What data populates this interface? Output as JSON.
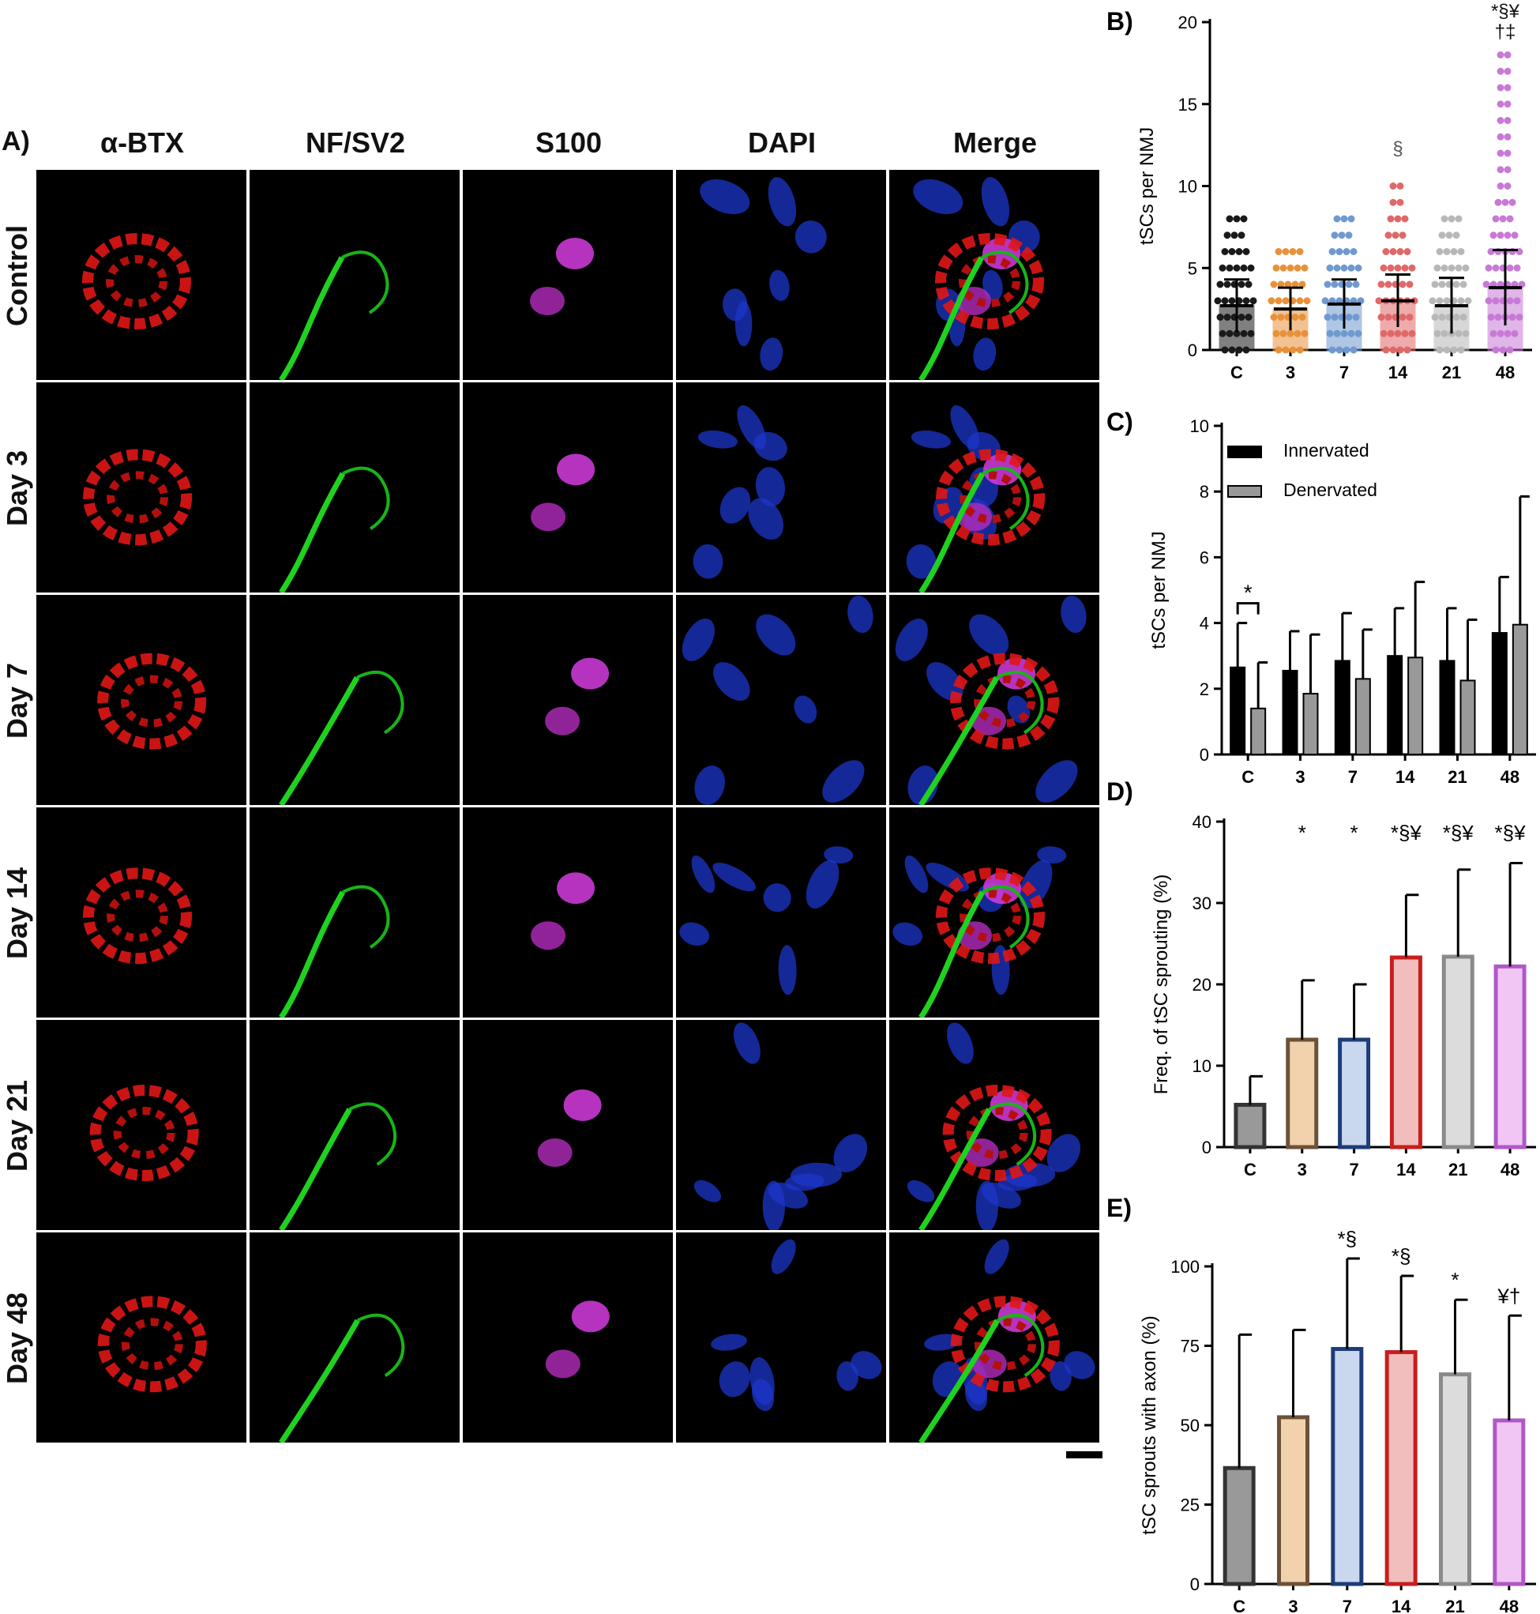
{
  "figure": {
    "panel_a_label": "A)",
    "columns": [
      "α-BTX",
      "NF/SV2",
      "S100",
      "DAPI",
      "Merge"
    ],
    "rows": [
      "Control",
      "Day 3",
      "Day 7",
      "Day 14",
      "Day 21",
      "Day 48"
    ]
  },
  "chart_data": [
    {
      "id": "B",
      "panel_label": "B)",
      "type": "bar",
      "categories": [
        "C",
        "3",
        "7",
        "14",
        "21",
        "48"
      ],
      "values": [
        2.7,
        2.5,
        2.8,
        3.0,
        2.7,
        3.8
      ],
      "errors": [
        1.6,
        1.3,
        1.5,
        1.6,
        1.7,
        2.3
      ],
      "scatter_max": [
        8,
        6,
        8,
        10,
        8,
        18
      ],
      "colors": [
        "#1a1a1a",
        "#e8913a",
        "#6f99cf",
        "#e06868",
        "#b8b8b8",
        "#c879d6"
      ],
      "annotations": [
        "",
        "",
        "",
        "§",
        "",
        "*§¥\n†‡"
      ],
      "ylabel": "tSCs per NMJ",
      "ylim": [
        0,
        20
      ],
      "yticks": [
        0,
        5,
        10,
        15,
        20
      ]
    },
    {
      "id": "C",
      "panel_label": "C)",
      "type": "bar",
      "categories": [
        "C",
        "3",
        "7",
        "14",
        "21",
        "48"
      ],
      "series": [
        {
          "name": "Innervated",
          "values": [
            2.65,
            2.55,
            2.85,
            3.0,
            2.85,
            3.7
          ],
          "errors": [
            1.35,
            1.2,
            1.45,
            1.45,
            1.6,
            1.7
          ],
          "color": "#000000"
        },
        {
          "name": "Denervated",
          "values": [
            1.4,
            1.85,
            2.3,
            2.95,
            2.25,
            3.95
          ],
          "errors": [
            1.4,
            1.8,
            1.5,
            2.3,
            1.85,
            3.9
          ],
          "color": "#999999"
        }
      ],
      "annotation": "*",
      "ylabel": "tSCs per NMJ",
      "ylim": [
        0,
        10
      ],
      "yticks": [
        0,
        2,
        4,
        6,
        8,
        10
      ],
      "legend_position": "top-left"
    },
    {
      "id": "D",
      "panel_label": "D)",
      "type": "bar",
      "categories": [
        "C",
        "3",
        "7",
        "14",
        "21",
        "48"
      ],
      "values": [
        5.2,
        13.2,
        13.2,
        23.3,
        23.4,
        22.2
      ],
      "errors": [
        3.5,
        7.3,
        6.8,
        7.7,
        10.7,
        12.7
      ],
      "fills": [
        "#999999",
        "#f2d2ad",
        "#c9d8ef",
        "#f2bdbd",
        "#dcdcdc",
        "#f1c6f4"
      ],
      "strokes": [
        "#333333",
        "#6b5238",
        "#1e3c78",
        "#c81e1e",
        "#8a8a8a",
        "#b058c8"
      ],
      "annotations": [
        "",
        "*",
        "*",
        "*§¥",
        "*§¥",
        "*§¥"
      ],
      "ylabel": "Freq. of tSC sprouting (%)",
      "ylim": [
        0,
        40
      ],
      "yticks": [
        0,
        10,
        20,
        30,
        40
      ]
    },
    {
      "id": "E",
      "panel_label": "E)",
      "type": "bar",
      "categories": [
        "C",
        "3",
        "7",
        "14",
        "21",
        "48"
      ],
      "values": [
        36.5,
        52.5,
        74,
        73,
        66,
        51.5
      ],
      "errors": [
        42,
        27.5,
        28.5,
        24,
        23.5,
        33
      ],
      "fills": [
        "#999999",
        "#f2d2ad",
        "#c9d8ef",
        "#f2bdbd",
        "#dcdcdc",
        "#f1c6f4"
      ],
      "strokes": [
        "#333333",
        "#6b5238",
        "#1e3c78",
        "#c81e1e",
        "#8a8a8a",
        "#b058c8"
      ],
      "annotations": [
        "",
        "",
        "*§",
        "*§",
        "*",
        "¥†"
      ],
      "ylabel": "tSC sprouts with axon (%)",
      "ylim": [
        0,
        100
      ],
      "yticks": [
        0,
        25,
        50,
        75,
        100
      ]
    }
  ]
}
